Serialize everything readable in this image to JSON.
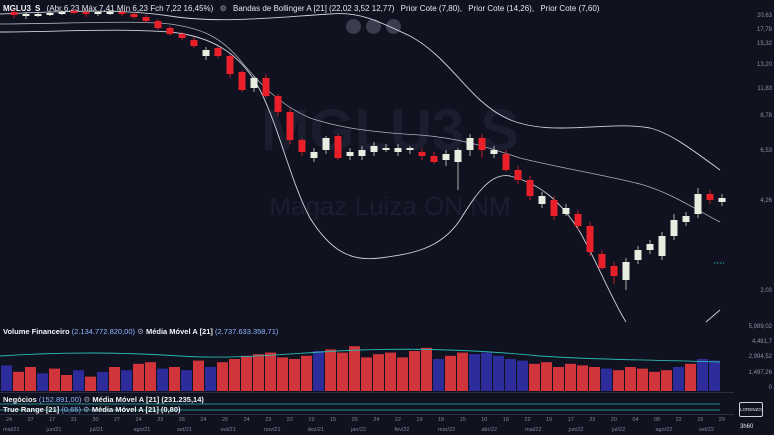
{
  "header": {
    "ticker": "MGLU3",
    "period": "S",
    "ohlc": "(Abr 6,23 Máx 7,41 Mín 6,23 Fch 7,22 16,45%)",
    "bollinger": "Bandas de Bollinger A [21] (22,02  3,52 12,77)",
    "prior1": "Prior Cote (7,80),",
    "prior2": "Prior Cote (14,26),",
    "prior3": "Prior Cote (7,60)"
  },
  "watermark": {
    "main": "MGLU3 S",
    "sub": "Magaz Luiza ON NM"
  },
  "price_axis": [
    "20,63",
    "17,78",
    "15,32",
    "13,20",
    "11,83",
    "8,78",
    "6,53",
    "4,26",
    "2,03"
  ],
  "volume_panel": {
    "label": "Volume Financeiro",
    "value": "(2.134.772.820,00)",
    "ma_label": "Média Móvel A [21]",
    "ma_value": "(2.737.633.358,71)",
    "axis": [
      "5,989,02",
      "4,481,7",
      "2,994,52",
      "1,497,26",
      "0"
    ]
  },
  "negocios": {
    "label": "Negócios",
    "value": "(152.891,00)",
    "ma": "Média Móvel A [21] (231.235,14)"
  },
  "true_range": {
    "label": "True Range [21]",
    "value": "(0,65)",
    "ma": "Média Móvel A [21] (0,80)"
  },
  "dates_top": [
    "24",
    "27",
    "17",
    "31",
    "30",
    "27",
    "24",
    "23",
    "26",
    "24",
    "26",
    "24",
    "23",
    "22",
    "19",
    "15",
    "26",
    "24",
    "22",
    "19",
    "18",
    "15",
    "10",
    "16",
    "22",
    "19",
    "17",
    "23",
    "20",
    "04",
    "08",
    "22",
    "15",
    "29"
  ],
  "dates_bot": [
    "mai/21",
    "jun/21",
    "jul/21",
    "ago/21",
    "set/21",
    "out/21",
    "nov/21",
    "dez/21",
    "jan/22",
    "fev/22",
    "mar/22",
    "abr/22",
    "mai/22",
    "jun/22",
    "jul/22",
    "ago/22",
    "set/22"
  ],
  "logo": {
    "line1": "LORENZO",
    "line2": "3h60"
  },
  "colors": {
    "up": "#e7ede0",
    "down": "#e8202a",
    "band": "#cfd3dc",
    "vol_up": "#2c2c9a",
    "vol_down": "#d0353c",
    "teal": "#2ab7b0"
  }
}
